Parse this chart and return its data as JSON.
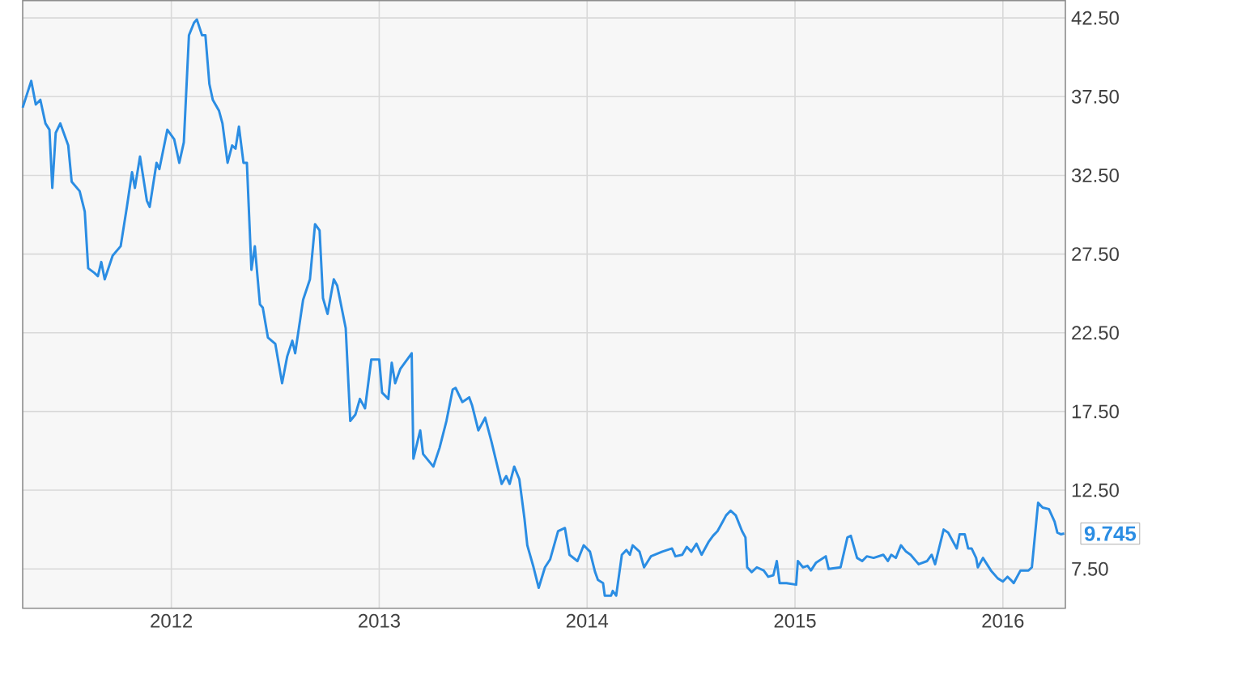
{
  "chart_data": {
    "type": "line",
    "x": [
      "2011-04-15",
      "2011-04-30",
      "2011-05-08",
      "2011-05-16",
      "2011-05-25",
      "2011-06-01",
      "2011-06-06",
      "2011-06-12",
      "2011-06-20",
      "2011-07-04",
      "2011-07-10",
      "2011-07-24",
      "2011-08-02",
      "2011-08-08",
      "2011-08-19",
      "2011-08-25",
      "2011-08-31",
      "2011-09-06",
      "2011-09-20",
      "2011-10-04",
      "2011-10-15",
      "2011-10-24",
      "2011-10-29",
      "2011-11-07",
      "2011-11-19",
      "2011-11-24",
      "2011-12-06",
      "2011-12-11",
      "2011-12-25",
      "2012-01-06",
      "2012-01-15",
      "2012-01-23",
      "2012-02-01",
      "2012-02-10",
      "2012-02-15",
      "2012-02-24",
      "2012-03-01",
      "2012-03-08",
      "2012-03-14",
      "2012-03-25",
      "2012-03-31",
      "2012-04-09",
      "2012-04-17",
      "2012-04-23",
      "2012-04-29",
      "2012-05-07",
      "2012-05-13",
      "2012-05-21",
      "2012-05-27",
      "2012-06-05",
      "2012-06-10",
      "2012-06-19",
      "2012-07-02",
      "2012-07-14",
      "2012-07-23",
      "2012-08-01",
      "2012-08-06",
      "2012-08-20",
      "2012-09-01",
      "2012-09-10",
      "2012-09-18",
      "2012-09-24",
      "2012-10-02",
      "2012-10-13",
      "2012-10-19",
      "2012-11-03",
      "2012-11-11",
      "2012-11-20",
      "2012-11-28",
      "2012-12-07",
      "2012-12-18",
      "2013-01-01",
      "2013-01-06",
      "2013-01-17",
      "2013-01-23",
      "2013-01-29",
      "2013-02-07",
      "2013-02-27",
      "2013-03-02",
      "2013-03-14",
      "2013-03-19",
      "2013-04-06",
      "2013-04-17",
      "2013-04-29",
      "2013-05-10",
      "2013-05-15",
      "2013-05-27",
      "2013-06-08",
      "2013-06-13",
      "2013-06-24",
      "2013-07-06",
      "2013-07-17",
      "2013-08-04",
      "2013-08-12",
      "2013-08-18",
      "2013-08-26",
      "2013-09-04",
      "2013-09-13",
      "2013-09-18",
      "2013-09-29",
      "2013-10-08",
      "2013-10-19",
      "2013-10-28",
      "2013-11-11",
      "2013-11-23",
      "2013-12-01",
      "2013-12-15",
      "2013-12-26",
      "2014-01-06",
      "2014-01-15",
      "2014-01-20",
      "2014-01-29",
      "2014-02-01",
      "2014-02-12",
      "2014-02-15",
      "2014-02-21",
      "2014-03-03",
      "2014-03-11",
      "2014-03-17",
      "2014-03-22",
      "2014-04-03",
      "2014-04-11",
      "2014-04-23",
      "2014-05-13",
      "2014-05-30",
      "2014-06-05",
      "2014-06-17",
      "2014-06-25",
      "2014-07-03",
      "2014-07-12",
      "2014-07-21",
      "2014-08-02",
      "2014-08-10",
      "2014-08-18",
      "2014-08-27",
      "2014-09-02",
      "2014-09-10",
      "2014-09-19",
      "2014-09-30",
      "2014-10-06",
      "2014-10-09",
      "2014-10-17",
      "2014-10-26",
      "2014-11-07",
      "2014-11-15",
      "2014-11-24",
      "2014-11-30",
      "2014-12-05",
      "2014-12-17",
      "2015-01-03",
      "2015-01-06",
      "2015-01-15",
      "2015-01-23",
      "2015-01-29",
      "2015-02-07",
      "2015-02-24",
      "2015-03-01",
      "2015-03-22",
      "2015-04-03",
      "2015-04-09",
      "2015-04-20",
      "2015-04-29",
      "2015-05-07",
      "2015-05-19",
      "2015-06-05",
      "2015-06-13",
      "2015-06-19",
      "2015-06-27",
      "2015-07-06",
      "2015-07-15",
      "2015-07-23",
      "2015-08-06",
      "2015-08-21",
      "2015-08-29",
      "2015-09-04",
      "2015-09-19",
      "2015-09-27",
      "2015-10-06",
      "2015-10-12",
      "2015-10-17",
      "2015-10-26",
      "2015-11-01",
      "2015-11-07",
      "2015-11-15",
      "2015-11-18",
      "2015-11-27",
      "2015-12-11",
      "2015-12-23",
      "2016-01-01",
      "2016-01-09",
      "2016-01-15",
      "2016-01-20",
      "2016-02-01",
      "2016-02-15",
      "2016-02-21",
      "2016-03-03",
      "2016-03-11",
      "2016-03-22",
      "2016-04-01",
      "2016-04-06",
      "2016-04-12",
      "2016-04-18"
    ],
    "series": [
      {
        "color": "#2b8de3",
        "values": [
          36.8,
          38.5,
          37.0,
          37.3,
          35.8,
          35.4,
          31.7,
          35.2,
          35.8,
          34.4,
          32.1,
          31.5,
          30.2,
          26.6,
          26.3,
          26.1,
          27.0,
          25.9,
          27.4,
          28.0,
          30.5,
          32.7,
          31.7,
          33.7,
          30.9,
          30.5,
          33.3,
          32.9,
          35.4,
          34.8,
          33.3,
          34.6,
          41.4,
          42.2,
          42.4,
          41.4,
          41.4,
          38.3,
          37.3,
          36.6,
          35.8,
          33.3,
          34.4,
          34.2,
          35.6,
          33.3,
          33.3,
          26.5,
          28.0,
          24.3,
          24.1,
          22.2,
          21.8,
          19.3,
          21.0,
          22.0,
          21.2,
          24.6,
          25.9,
          29.4,
          29.0,
          24.7,
          23.7,
          25.9,
          25.5,
          22.8,
          16.9,
          17.3,
          18.3,
          17.7,
          20.8,
          20.8,
          18.7,
          18.3,
          20.6,
          19.3,
          20.2,
          21.2,
          14.5,
          16.3,
          14.8,
          14.0,
          15.2,
          16.9,
          18.9,
          19.0,
          18.1,
          18.4,
          17.9,
          16.3,
          17.1,
          15.6,
          12.9,
          13.4,
          12.9,
          14.0,
          13.2,
          10.7,
          9.0,
          7.6,
          6.3,
          7.6,
          8.1,
          9.9,
          10.1,
          8.4,
          8.0,
          9.0,
          8.6,
          7.3,
          6.8,
          6.6,
          5.8,
          5.8,
          6.1,
          5.8,
          8.4,
          8.7,
          8.4,
          9.0,
          8.6,
          7.6,
          8.3,
          8.6,
          8.8,
          8.3,
          8.4,
          8.9,
          8.6,
          9.1,
          8.4,
          9.2,
          9.6,
          9.9,
          10.5,
          10.9,
          11.2,
          10.9,
          9.9,
          9.5,
          7.6,
          7.3,
          7.6,
          7.4,
          7.0,
          7.1,
          8.0,
          6.6,
          6.6,
          6.5,
          8.0,
          7.6,
          7.7,
          7.4,
          7.9,
          8.3,
          7.5,
          7.6,
          9.5,
          9.6,
          8.2,
          8.0,
          8.3,
          8.2,
          8.4,
          8.0,
          8.4,
          8.2,
          9.0,
          8.6,
          8.4,
          7.8,
          8.0,
          8.4,
          7.8,
          10.0,
          9.8,
          9.2,
          8.8,
          9.7,
          9.7,
          8.8,
          8.8,
          8.2,
          7.6,
          8.2,
          7.4,
          6.9,
          6.7,
          7.0,
          6.8,
          6.6,
          7.4,
          7.4,
          7.6,
          11.7,
          11.4,
          11.3,
          10.5,
          9.8,
          9.7,
          9.745
        ],
        "value_labels": [
          null,
          null,
          null,
          null,
          null,
          null,
          null,
          null,
          null,
          null,
          null,
          null,
          null,
          null,
          null,
          null,
          null,
          null,
          null,
          null,
          null,
          null,
          null,
          null,
          null,
          null,
          null,
          null,
          null,
          null,
          null,
          null,
          null,
          null,
          null,
          null,
          null,
          null,
          null,
          null,
          null,
          null,
          null,
          null,
          null,
          null,
          null,
          null,
          null,
          null,
          null,
          null,
          null,
          null,
          null,
          null,
          null,
          null,
          null,
          null,
          null,
          null,
          null,
          null,
          null,
          null,
          null,
          null,
          null,
          null,
          null,
          null,
          null,
          null,
          null,
          null,
          null,
          null,
          null,
          null,
          null,
          null,
          null,
          null,
          null,
          null,
          null,
          null,
          null,
          null,
          null,
          null,
          null,
          null,
          null,
          null,
          null,
          null,
          null,
          null,
          null,
          null,
          null,
          null,
          null,
          null,
          null,
          null,
          null,
          null,
          null,
          null,
          null,
          null,
          null,
          null,
          null,
          null,
          null,
          null,
          null,
          null,
          null,
          null,
          null,
          null,
          null,
          null,
          null,
          null,
          null,
          null,
          null,
          null,
          null,
          null,
          null,
          null,
          null,
          null,
          null,
          null,
          null,
          null,
          null,
          null,
          null,
          null,
          null,
          null,
          null,
          null,
          null,
          null,
          null,
          null,
          null,
          null,
          null,
          null,
          null,
          null,
          null,
          null,
          null,
          null,
          null,
          null,
          null,
          null,
          null,
          null,
          null,
          null,
          null,
          null,
          null,
          null,
          null,
          null,
          null,
          null,
          null,
          null,
          null,
          null,
          null,
          null,
          null,
          null,
          null,
          null,
          null,
          null,
          null,
          null,
          null,
          null,
          null,
          null,
          null,
          "9.745"
        ]
      }
    ],
    "xlim": [
      "2011-04-15",
      "2016-04-20"
    ],
    "xticks": [
      "2012",
      "2013",
      "2014",
      "2015",
      "2016"
    ],
    "ylim": [
      5,
      43.6
    ],
    "yticks": [
      {
        "value": 7.5,
        "label": "7.50"
      },
      {
        "value": 12.5,
        "label": "12.50"
      },
      {
        "value": 17.5,
        "label": "17.50"
      },
      {
        "value": 22.5,
        "label": "22.50"
      },
      {
        "value": 27.5,
        "label": "27.50"
      },
      {
        "value": 32.5,
        "label": "32.50"
      },
      {
        "value": 37.5,
        "label": "37.50"
      },
      {
        "value": 42.5,
        "label": "42.50"
      }
    ],
    "grid": true,
    "legend": false,
    "marker": "none",
    "line_style": "solid"
  }
}
